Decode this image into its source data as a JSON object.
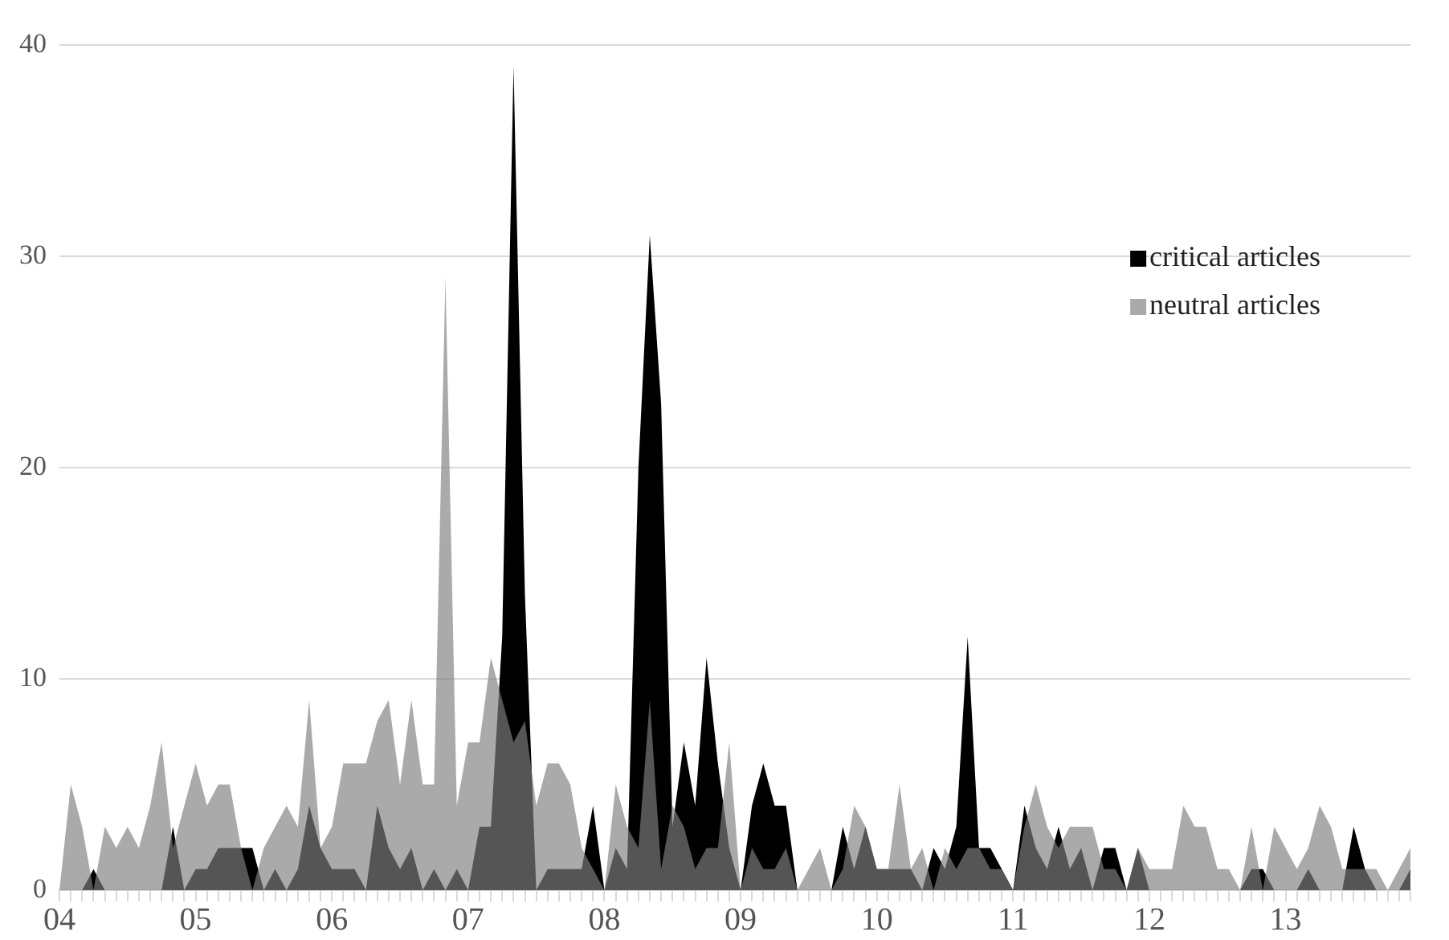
{
  "chart_data": {
    "type": "area",
    "categories": [
      "04",
      null,
      null,
      null,
      null,
      null,
      null,
      null,
      null,
      null,
      null,
      null,
      "05",
      null,
      null,
      null,
      null,
      null,
      null,
      null,
      null,
      null,
      null,
      null,
      "06",
      null,
      null,
      null,
      null,
      null,
      null,
      null,
      null,
      null,
      null,
      null,
      "07",
      null,
      null,
      null,
      null,
      null,
      null,
      null,
      null,
      null,
      null,
      null,
      "08",
      null,
      null,
      null,
      null,
      null,
      null,
      null,
      null,
      null,
      null,
      null,
      "09",
      null,
      null,
      null,
      null,
      null,
      null,
      null,
      null,
      null,
      null,
      null,
      "10",
      null,
      null,
      null,
      null,
      null,
      null,
      null,
      null,
      null,
      null,
      null,
      "11",
      null,
      null,
      null,
      null,
      null,
      null,
      null,
      null,
      null,
      null,
      null,
      "12",
      null,
      null,
      null,
      null,
      null,
      null,
      null,
      null,
      null,
      null,
      null,
      "13",
      null,
      null,
      null,
      null,
      null,
      null,
      null,
      null,
      null,
      null,
      null
    ],
    "series": [
      {
        "name": "critical articles",
        "color": "#000000",
        "values": [
          0,
          0,
          0,
          1,
          0,
          0,
          0,
          0,
          0,
          0,
          3,
          0,
          1,
          1,
          2,
          2,
          2,
          2,
          0,
          1,
          0,
          1,
          4,
          2,
          1,
          1,
          1,
          0,
          4,
          2,
          1,
          2,
          0,
          1,
          0,
          1,
          0,
          3,
          3,
          12,
          39,
          14,
          0,
          1,
          1,
          1,
          1,
          4,
          0,
          2,
          1,
          20,
          31,
          23,
          3,
          7,
          4,
          11,
          6,
          2,
          0,
          4,
          6,
          4,
          4,
          0,
          0,
          0,
          0,
          3,
          1,
          3,
          1,
          1,
          1,
          1,
          0,
          2,
          1,
          3,
          12,
          2,
          2,
          1,
          0,
          4,
          2,
          1,
          3,
          1,
          2,
          0,
          2,
          2,
          0,
          2,
          0,
          0,
          0,
          0,
          0,
          0,
          0,
          0,
          0,
          1,
          1,
          0,
          0,
          0,
          1,
          0,
          0,
          0,
          3,
          1,
          0,
          0,
          0,
          1
        ]
      },
      {
        "name": "neutral articles",
        "color": "#aaaaaa",
        "values": [
          0,
          5,
          3,
          0,
          3,
          2,
          3,
          2,
          4,
          7,
          2,
          4,
          6,
          4,
          5,
          5,
          2,
          0,
          2,
          3,
          4,
          3,
          9,
          2,
          3,
          6,
          6,
          6,
          8,
          9,
          5,
          9,
          5,
          5,
          29,
          4,
          7,
          7,
          11,
          9,
          7,
          8,
          4,
          6,
          6,
          5,
          2,
          1,
          0,
          5,
          3,
          2,
          9,
          1,
          4,
          3,
          1,
          2,
          2,
          7,
          0,
          2,
          1,
          1,
          2,
          0,
          1,
          2,
          0,
          1,
          4,
          3,
          1,
          1,
          5,
          1,
          2,
          0,
          2,
          1,
          2,
          2,
          1,
          1,
          0,
          3,
          5,
          3,
          2,
          3,
          3,
          3,
          1,
          1,
          0,
          2,
          1,
          1,
          1,
          4,
          3,
          3,
          1,
          1,
          0,
          3,
          0,
          3,
          2,
          1,
          2,
          4,
          3,
          1,
          1,
          1,
          1,
          0,
          1,
          2
        ]
      }
    ],
    "ylim": [
      0,
      40
    ],
    "yticks": [
      0,
      10,
      20,
      30,
      40
    ],
    "grid": "y",
    "legend": "right"
  }
}
